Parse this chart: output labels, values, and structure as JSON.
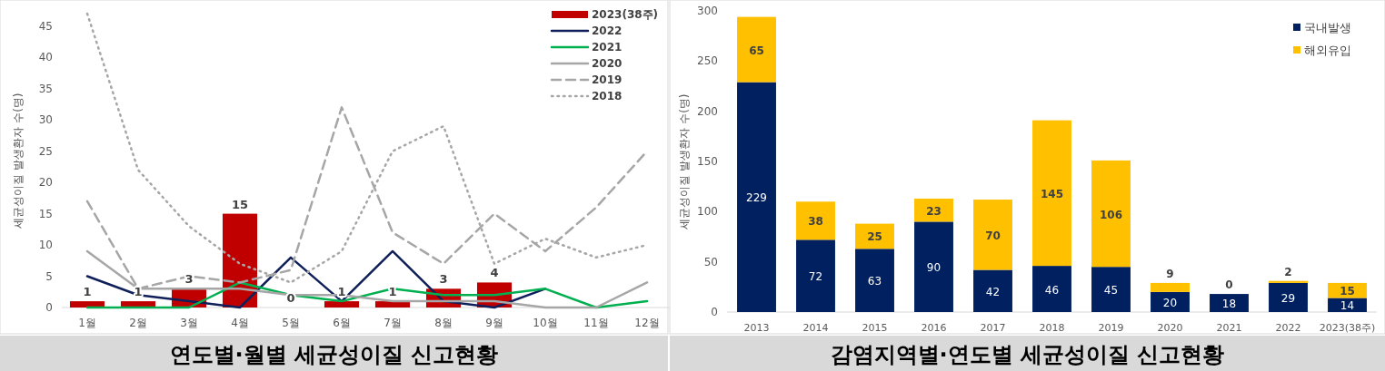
{
  "chart_data": [
    {
      "type": "line",
      "title": "연도별·월별 세균성이질 신고현황",
      "ylabel": "세균성이질 발생환자 수(명)",
      "categories": [
        "1월",
        "2월",
        "3월",
        "4월",
        "5월",
        "6월",
        "7월",
        "8월",
        "9월",
        "10월",
        "11월",
        "12월"
      ],
      "ylim": [
        0,
        47
      ],
      "yticks": [
        0,
        5,
        10,
        15,
        20,
        25,
        30,
        35,
        40,
        45
      ],
      "legend": "top right",
      "series": [
        {
          "name": "2023(38주)",
          "type": "bar",
          "color": "#c00000",
          "values": [
            1,
            1,
            3,
            15,
            0,
            1,
            1,
            3,
            4,
            null,
            null,
            null
          ],
          "value_labels": [
            "1",
            "1",
            "3",
            "15",
            "0",
            "1",
            "1",
            "3",
            "4",
            null,
            null,
            null
          ]
        },
        {
          "name": "2022",
          "color": "#0f1f5a",
          "line_style": "solid",
          "values": [
            5,
            2,
            1,
            0,
            8,
            1,
            9,
            1,
            0,
            3,
            null,
            null
          ]
        },
        {
          "name": "2021",
          "color": "#00b050",
          "line_style": "solid",
          "values": [
            0,
            0,
            0,
            4,
            2,
            1,
            3,
            2,
            2,
            3,
            0,
            1
          ]
        },
        {
          "name": "2020",
          "color": "#a6a6a6",
          "line_style": "solid",
          "values": [
            9,
            3,
            3,
            3,
            2,
            2,
            1,
            1,
            1,
            0,
            0,
            4
          ]
        },
        {
          "name": "2019",
          "color": "#a6a6a6",
          "line_style": "dashed",
          "values": [
            17,
            3,
            5,
            4,
            6,
            32,
            12,
            7,
            15,
            9,
            16,
            25
          ]
        },
        {
          "name": "2018",
          "color": "#a6a6a6",
          "line_style": "dotted",
          "values": [
            47,
            22,
            13,
            7,
            4,
            9,
            25,
            29,
            7,
            11,
            8,
            10
          ]
        }
      ]
    },
    {
      "type": "bar",
      "stacked": true,
      "data_labels": true,
      "title": "감염지역별·연도별 세균성이질 신고현황",
      "ylabel": "세균성이질 발생환자 수(명)",
      "categories": [
        "2013",
        "2014",
        "2015",
        "2016",
        "2017",
        "2018",
        "2019",
        "2020",
        "2021",
        "2022",
        "2023(38주)"
      ],
      "ylim": [
        0,
        300
      ],
      "yticks": [
        0,
        50,
        100,
        150,
        200,
        250,
        300
      ],
      "legend": "top right",
      "series": [
        {
          "name": "국내발생",
          "color": "#002060",
          "values": [
            229,
            72,
            63,
            90,
            42,
            46,
            45,
            20,
            18,
            29,
            14
          ]
        },
        {
          "name": "해외유입",
          "color": "#ffc000",
          "values": [
            65,
            38,
            25,
            23,
            70,
            145,
            106,
            9,
            0,
            2,
            15
          ]
        }
      ]
    }
  ]
}
